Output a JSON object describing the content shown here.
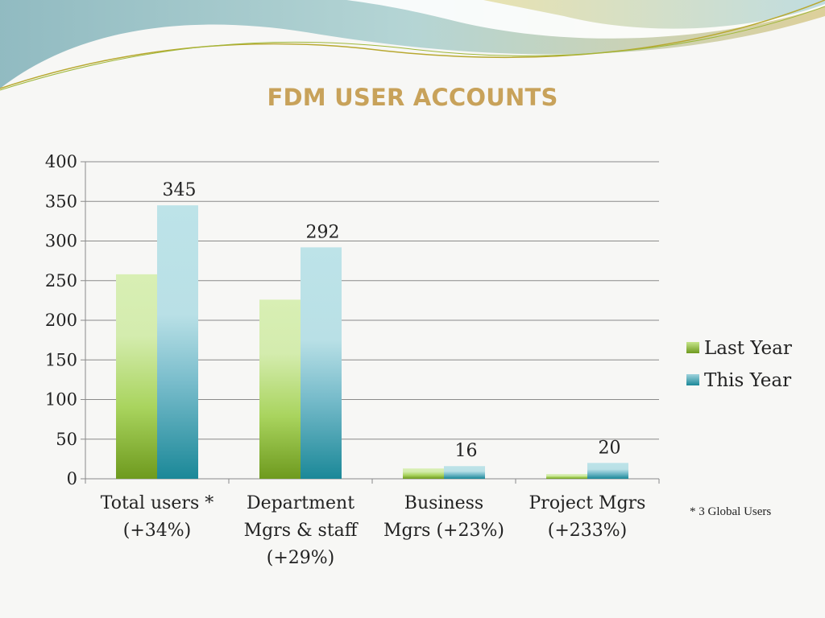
{
  "slide": {
    "title": "FDM USER ACCOUNTS",
    "footnote": "* 3 Global Users"
  },
  "colors": {
    "title": "#c8a25a",
    "last_year": "#8cbf3f",
    "this_year": "#3fa0b4"
  },
  "chart_data": {
    "type": "bar",
    "title": "FDM USER ACCOUNTS",
    "xlabel": "",
    "ylabel": "",
    "ylim": [
      0,
      400
    ],
    "yticks": [
      0,
      50,
      100,
      150,
      200,
      250,
      300,
      350,
      400
    ],
    "grid": true,
    "legend_position": "right",
    "categories": [
      [
        "Total users *",
        "(+34%)"
      ],
      [
        "Department",
        "Mgrs & staff",
        "(+29%)"
      ],
      [
        "Business",
        "Mgrs (+23%)"
      ],
      [
        "Project Mgrs",
        "(+233%)"
      ]
    ],
    "series": [
      {
        "name": "Last Year",
        "values": [
          258,
          226,
          13,
          6
        ],
        "labels": [
          null,
          null,
          null,
          null
        ]
      },
      {
        "name": "This Year",
        "values": [
          345,
          292,
          16,
          20
        ],
        "labels": [
          "345",
          "292",
          "16",
          "20"
        ]
      }
    ]
  }
}
